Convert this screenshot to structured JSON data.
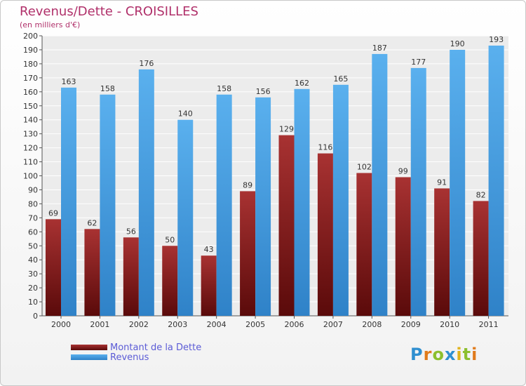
{
  "chart_data": {
    "type": "bar",
    "title": "Revenus/Dette - CROISILLES",
    "subtitle": "(en milliers d'€)",
    "categories": [
      "2000",
      "2001",
      "2002",
      "2003",
      "2004",
      "2005",
      "2006",
      "2007",
      "2008",
      "2009",
      "2010",
      "2011"
    ],
    "series": [
      {
        "name": "Montant de la Dette",
        "color": "#8b1a1a",
        "values": [
          69,
          62,
          56,
          50,
          43,
          89,
          129,
          116,
          102,
          99,
          91,
          82
        ]
      },
      {
        "name": "Revenus",
        "color": "#4aa0e0",
        "values": [
          163,
          158,
          176,
          140,
          158,
          156,
          162,
          165,
          187,
          177,
          190,
          193
        ]
      }
    ],
    "ylim": [
      0,
      200
    ],
    "ytick_step": 10,
    "grid": true,
    "legend": "bottom-left"
  },
  "brand": {
    "text": "Proxiti",
    "letters": [
      {
        "ch": "P",
        "color": "#2f8fd0"
      },
      {
        "ch": "r",
        "color": "#e07b1c"
      },
      {
        "ch": "o",
        "color": "#8cbf2e"
      },
      {
        "ch": "x",
        "color": "#2f8fd0"
      },
      {
        "ch": "i",
        "color": "#e0b31c"
      },
      {
        "ch": "t",
        "color": "#8cbf2e"
      },
      {
        "ch": "i",
        "color": "#e07b1c"
      }
    ]
  }
}
